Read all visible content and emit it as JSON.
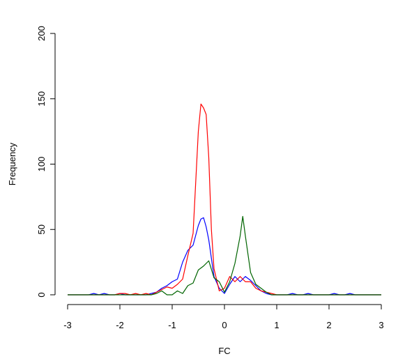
{
  "chart_data": {
    "type": "line",
    "title": "",
    "xlabel": "FC",
    "ylabel": "Frequency",
    "xlim": [
      -3,
      3
    ],
    "ylim": [
      0,
      200
    ],
    "xticks": [
      "-3",
      "-2",
      "-1",
      "0",
      "1",
      "2",
      "3"
    ],
    "yticks": [
      "0",
      "50",
      "100",
      "150",
      "200"
    ],
    "grid": false,
    "legend": "none",
    "series": [
      {
        "color": "#0000ff",
        "x": [
          -3,
          -2.9,
          -2.8,
          -2.7,
          -2.6,
          -2.5,
          -2.4,
          -2.3,
          -2.2,
          -2.1,
          -2,
          -1.9,
          -1.8,
          -1.7,
          -1.6,
          -1.5,
          -1.4,
          -1.3,
          -1.2,
          -1.1,
          -1.0,
          -0.9,
          -0.8,
          -0.7,
          -0.6,
          -0.5,
          -0.45,
          -0.4,
          -0.35,
          -0.3,
          -0.25,
          -0.2,
          -0.1,
          0,
          0.1,
          0.2,
          0.3,
          0.4,
          0.5,
          0.6,
          0.7,
          0.8,
          0.9,
          1,
          1.1,
          1.2,
          1.3,
          1.4,
          1.5,
          1.6,
          1.7,
          1.8,
          1.9,
          2,
          2.1,
          2.2,
          2.3,
          2.4,
          2.5,
          2.6,
          2.7,
          2.8,
          2.9,
          3
        ],
        "y": [
          0,
          0,
          0,
          0,
          0,
          1,
          0,
          1,
          0,
          0,
          1,
          0,
          0,
          0,
          0,
          0,
          1,
          2,
          5,
          7,
          10,
          12,
          25,
          34,
          38,
          53,
          58,
          59,
          52,
          42,
          28,
          14,
          5,
          1,
          8,
          14,
          10,
          14,
          11,
          7,
          3,
          1,
          0,
          0,
          0,
          0,
          1,
          0,
          0,
          1,
          0,
          0,
          0,
          0,
          1,
          0,
          0,
          1,
          0,
          0,
          0,
          0,
          0,
          0
        ]
      },
      {
        "color": "#ff0000",
        "x": [
          -3,
          -2.9,
          -2.8,
          -2.7,
          -2.6,
          -2.5,
          -2.4,
          -2.3,
          -2.2,
          -2.1,
          -2,
          -1.9,
          -1.8,
          -1.7,
          -1.6,
          -1.5,
          -1.4,
          -1.3,
          -1.2,
          -1.1,
          -1.0,
          -0.9,
          -0.8,
          -0.7,
          -0.6,
          -0.5,
          -0.45,
          -0.4,
          -0.35,
          -0.3,
          -0.25,
          -0.2,
          -0.1,
          0,
          0.1,
          0.2,
          0.3,
          0.4,
          0.5,
          0.6,
          0.7,
          0.8,
          0.9,
          1,
          1.1,
          1.2,
          1.3,
          1.4,
          1.5,
          1.6,
          1.7,
          1.8,
          1.9,
          2,
          2.1,
          2.2,
          2.3,
          2.4,
          2.5,
          2.6,
          2.7,
          2.8,
          2.9,
          3
        ],
        "y": [
          0,
          0,
          0,
          0,
          0,
          0,
          0,
          0,
          0,
          0,
          1,
          1,
          0,
          1,
          0,
          1,
          0,
          2,
          4,
          6,
          5,
          8,
          12,
          30,
          47,
          125,
          146,
          143,
          138,
          105,
          50,
          20,
          3,
          5,
          14,
          10,
          14,
          10,
          10,
          5,
          3,
          2,
          1,
          0,
          0,
          0,
          0,
          0,
          0,
          0,
          0,
          0,
          0,
          0,
          0,
          0,
          0,
          0,
          0,
          0,
          0,
          0,
          0,
          0
        ]
      },
      {
        "color": "#006400",
        "x": [
          -3,
          -2.9,
          -2.8,
          -2.7,
          -2.6,
          -2.5,
          -2.4,
          -2.3,
          -2.2,
          -2.1,
          -2,
          -1.9,
          -1.8,
          -1.7,
          -1.6,
          -1.5,
          -1.4,
          -1.3,
          -1.2,
          -1.1,
          -1.0,
          -0.9,
          -0.8,
          -0.7,
          -0.6,
          -0.5,
          -0.4,
          -0.3,
          -0.2,
          -0.1,
          0,
          0.1,
          0.2,
          0.3,
          0.35,
          0.4,
          0.5,
          0.6,
          0.7,
          0.8,
          0.9,
          1,
          1.1,
          1.2,
          1.3,
          1.4,
          1.5,
          1.6,
          1.7,
          1.8,
          1.9,
          2,
          2.1,
          2.2,
          2.3,
          2.4,
          2.5,
          2.6,
          2.7,
          2.8,
          2.9,
          3
        ],
        "y": [
          0,
          0,
          0,
          0,
          0,
          0,
          0,
          0,
          0,
          0,
          0,
          0,
          0,
          0,
          0,
          0,
          0,
          1,
          3,
          0,
          0,
          3,
          1,
          7,
          9,
          19,
          22,
          26,
          13,
          10,
          2,
          10,
          24,
          45,
          60,
          45,
          17,
          8,
          5,
          2,
          0,
          0,
          0,
          0,
          0,
          0,
          0,
          0,
          0,
          0,
          0,
          0,
          0,
          0,
          0,
          0,
          0,
          0,
          0,
          0,
          0,
          0
        ]
      }
    ]
  }
}
